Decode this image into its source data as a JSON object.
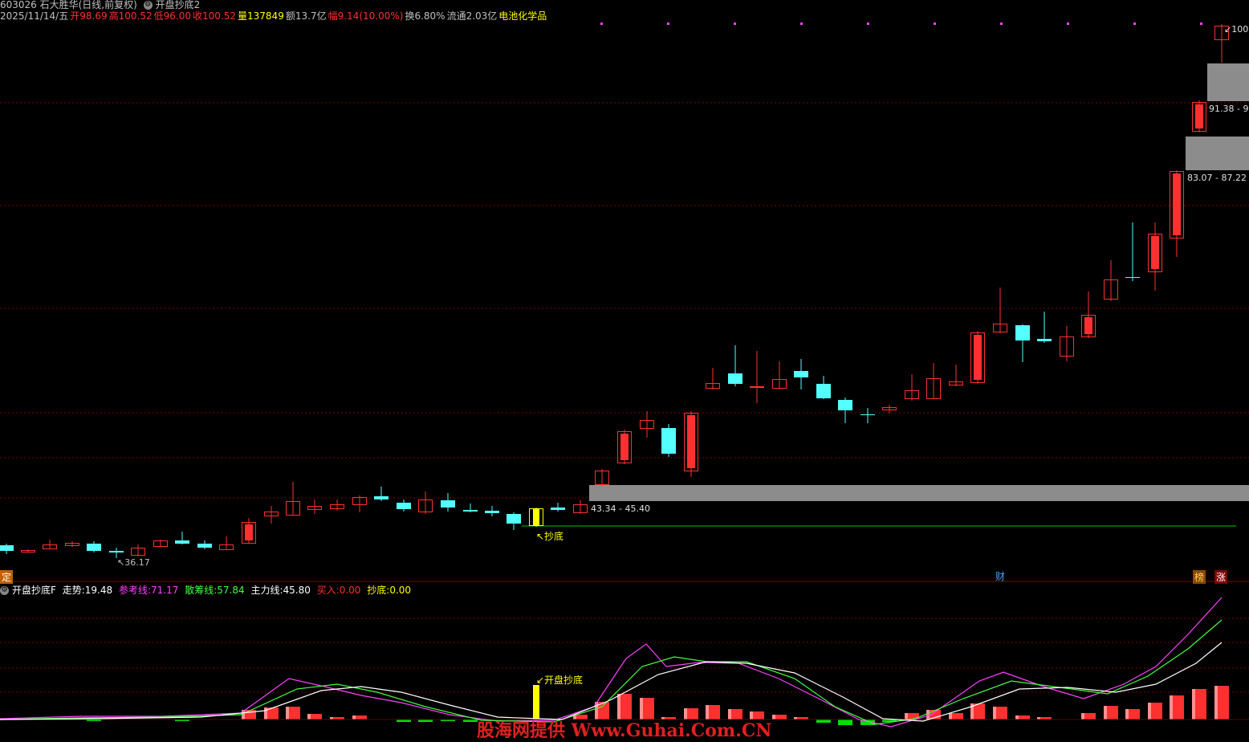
{
  "header": {
    "stock": "603026 石大胜华(日线,前复权)",
    "formula": "开盘抄底2",
    "date": "2025/11/14/五",
    "open_label": "开",
    "open": "98.69",
    "high_label": "高",
    "high": "100.52",
    "low_label": "低",
    "low": "96.00",
    "close_label": "收",
    "close": "100.52",
    "vol_label": "量",
    "vol": "137849",
    "amt_label": "额",
    "amt": "13.7亿",
    "chg_label": "幅",
    "chg": "9.14(10.00%)",
    "turn": "换6.80%",
    "float": "流通2.03亿",
    "sector": "电池化学品"
  },
  "price_labels": {
    "low_mark": "36.17",
    "zone1": "43.34 - 45.40",
    "zone2": "83.07 - 87.22",
    "zone3": "91.38 - 9",
    "top": "100",
    "signal": "↖抄底"
  },
  "badges": {
    "left": "定",
    "cai": "财",
    "bang": "榜",
    "zhang": "涨"
  },
  "indicator": {
    "name": "开盘抄底F",
    "trend_label": "走势:",
    "trend": "19.48",
    "ref_label": "参考线:",
    "ref": "71.17",
    "scatter_label": "散筹线:",
    "scatter": "57.84",
    "main_label": "主力线:",
    "main": "45.80",
    "buy_label": "买入:",
    "buy": "0.00",
    "bottom_label": "抄底:",
    "bottom": "0.00",
    "signal": "↙开盘抄底"
  },
  "watermark": "股海网提供 Www.Guhai.Com.CN",
  "colors": {
    "up": "#ff3030",
    "down": "#54ffff",
    "zone": "#8c8c8c",
    "grid": "#7a0000",
    "ref_line": "#ff40ff",
    "scatter_line": "#40ff40",
    "main_line": "#ffffff",
    "signal": "#ffff00"
  },
  "candles": [
    [
      0,
      -1,
      0,
      0
    ],
    [
      26,
      0,
      0,
      0
    ],
    [
      62,
      0,
      0,
      0
    ],
    [
      90,
      0,
      0,
      0
    ],
    [
      117,
      -1,
      0,
      0
    ],
    [
      145,
      -1,
      0,
      0
    ],
    [
      172,
      1,
      0,
      0
    ],
    [
      200,
      1,
      0,
      0
    ],
    [
      227,
      -1,
      0,
      0
    ],
    [
      255,
      -1,
      0,
      0
    ],
    [
      282,
      1,
      0,
      0
    ],
    [
      310,
      1,
      0,
      0
    ],
    [
      338,
      1,
      0,
      0
    ],
    [
      365,
      1,
      0,
      0
    ],
    [
      392,
      0,
      0,
      0
    ],
    [
      420,
      0,
      0,
      0
    ],
    [
      448,
      1,
      0,
      0
    ],
    [
      475,
      -1,
      0,
      0
    ],
    [
      503,
      -1,
      0,
      0
    ],
    [
      530,
      1,
      0,
      0
    ],
    [
      558,
      -1,
      0,
      0
    ],
    [
      586,
      -1,
      0,
      0
    ],
    [
      613,
      -1,
      0,
      0
    ],
    [
      640,
      -1,
      0,
      0
    ],
    [
      668,
      2,
      0,
      0
    ],
    [
      695,
      -1,
      0,
      0
    ],
    [
      723,
      1,
      0,
      0
    ]
  ]
}
